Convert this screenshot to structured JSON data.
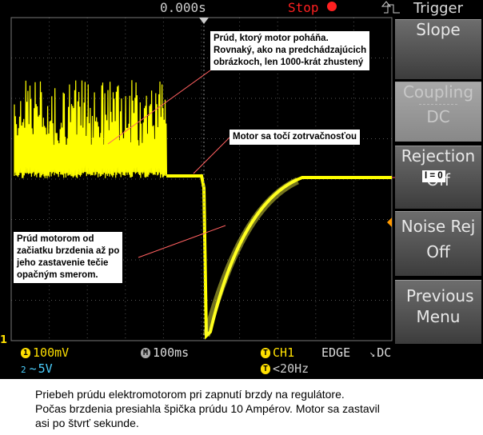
{
  "top_bar": {
    "timebase_offset": "0.000s",
    "status": "Stop",
    "menu_title": "Trigger"
  },
  "menu": [
    {
      "title": "Slope"
    },
    {
      "title": "Coupling",
      "value": "DC"
    },
    {
      "title": "Rejection",
      "value": "Off"
    },
    {
      "title": "Noise Rej",
      "value": "Off"
    },
    {
      "title": "Previous Menu"
    }
  ],
  "status": {
    "ch1_badge": "1",
    "ch1_scale": "100mV",
    "time_badge": "M",
    "time_scale": "100ms",
    "trigger_badge": "T",
    "trigger_source": "CH1",
    "trigger_type": "EDGE",
    "trigger_coupling": "DC",
    "ch2_badge": "2",
    "ch2_scale": "5V",
    "filter_badge": "T",
    "trigger_filter": "<20Hz"
  },
  "channel_marker": "1",
  "annotations": [
    {
      "lines": [
        "Prúd, ktorý motor poháňa.",
        "Rovnaký, ako na predchádzajúcich",
        "obrázkoch, len 1000-krát zhustený"
      ]
    },
    {
      "lines": [
        "Motor sa točí zotrvačnosťou"
      ]
    },
    {
      "lines": [
        "Prúd motorom od",
        "začiatku brzdenia až po",
        "jeho zastavenie tečie",
        "opačným smerom."
      ]
    },
    {
      "lines": [
        "I = 0"
      ]
    }
  ],
  "caption": [
    "Priebeh prúdu elektromotorom pri zapnutí brzdy na regulátore.",
    "Počas brzdenia presiahla špička prúdu 10 Ampérov. Motor sa zastavil",
    "asi po štvrť sekunde."
  ]
}
